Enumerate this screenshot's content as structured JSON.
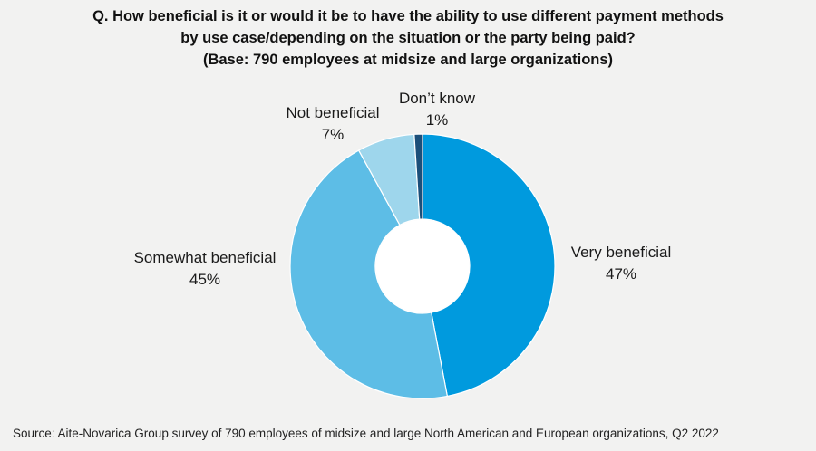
{
  "chart_data": {
    "type": "pie",
    "donut": true,
    "title_lines": [
      "Q. How beneficial is it or would it be to have the ability to use different payment methods",
      "by use case/depending on the situation or the party being paid?",
      "(Base: 790 employees at midsize and large organizations)"
    ],
    "categories": [
      "Very beneficial",
      "Somewhat beneficial",
      "Not beneficial",
      "Don’t know"
    ],
    "values": [
      47,
      45,
      7,
      1
    ],
    "value_labels": [
      "47%",
      "45%",
      "7%",
      "1%"
    ],
    "colors": [
      "#009ade",
      "#5dbde6",
      "#9ed6ec",
      "#1b4f7a"
    ],
    "legend": "none",
    "source": "Source: Aite-Novarica Group survey of 790 employees of midsize and large North American and European organizations, Q2 2022"
  }
}
